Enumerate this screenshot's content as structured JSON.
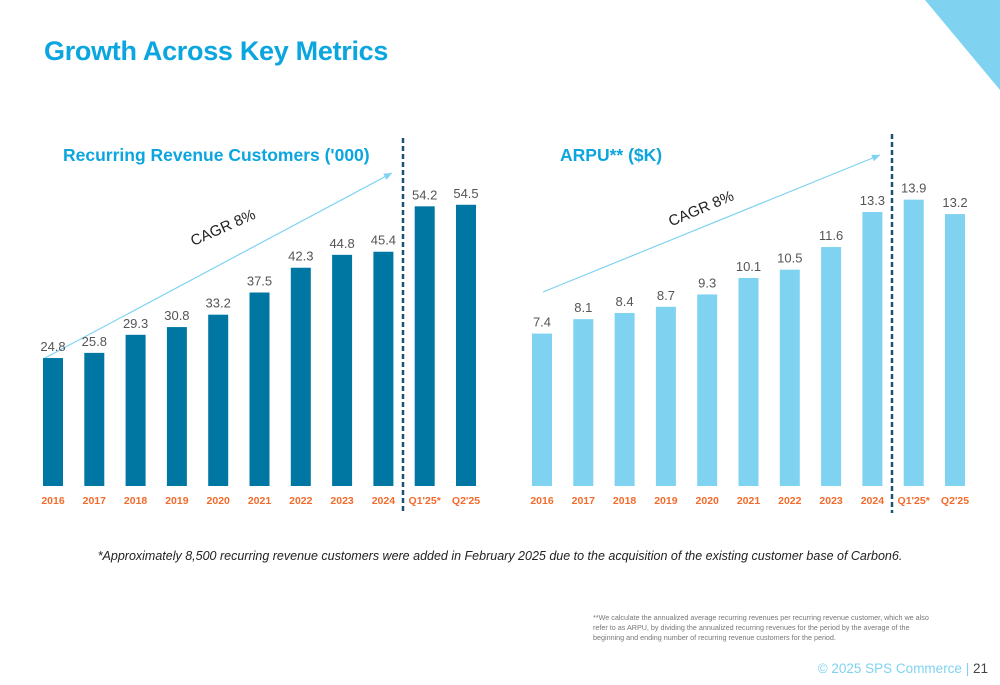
{
  "page": {
    "title": "Growth Across Key Metrics",
    "note": "*Approximately 8,500 recurring revenue customers were added in February 2025 due to the acquisition of the existing customer base of Carbon6.",
    "footnote": "**We calculate the annualized average recurring revenues per recurring revenue customer, which we also refer to as ARPU, by dividing the annualized recurring revenues for the period by the average of the beginning and ending number of recurring revenue customers for the period.",
    "footer_company": "© 2025 SPS Commerce |",
    "page_number": "21",
    "colors": {
      "accent": "#0ba5df",
      "corner": "#7fd3f1",
      "label": "#f26b2b",
      "divider": "#1a5276"
    }
  },
  "chart_data": [
    {
      "type": "bar",
      "title": "Recurring Revenue Customers ('000)",
      "categories": [
        "2016",
        "2017",
        "2018",
        "2019",
        "2020",
        "2021",
        "2022",
        "2023",
        "2024",
        "Q1'25*",
        "Q2'25"
      ],
      "values": [
        24.8,
        25.8,
        29.3,
        30.8,
        33.2,
        37.5,
        42.3,
        44.8,
        45.4,
        54.2,
        54.5
      ],
      "labels": [
        "24.8",
        "25.8",
        "29.3",
        "30.8",
        "33.2",
        "37.5",
        "42.3",
        "44.8",
        "45.4",
        "54.2",
        "54.5"
      ],
      "annotation": "CAGR 8%",
      "divider_after": "2024",
      "ylim": [
        0,
        55
      ],
      "grid": false,
      "bar_color": "#0077a3",
      "xlabel": "",
      "ylabel": ""
    },
    {
      "type": "bar",
      "title": "ARPU** ($K)",
      "categories": [
        "2016",
        "2017",
        "2018",
        "2019",
        "2020",
        "2021",
        "2022",
        "2023",
        "2024",
        "Q1'25*",
        "Q2'25"
      ],
      "values": [
        7.4,
        8.1,
        8.4,
        8.7,
        9.3,
        10.1,
        10.5,
        11.6,
        13.3,
        13.9,
        13.2
      ],
      "labels": [
        "7.4",
        "8.1",
        "8.4",
        "8.7",
        "9.3",
        "10.1",
        "10.5",
        "11.6",
        "13.3",
        "13.9",
        "13.2"
      ],
      "annotation": "CAGR 8%",
      "divider_after": "2024",
      "ylim": [
        0,
        14
      ],
      "grid": false,
      "bar_color": "#7fd3f1",
      "xlabel": "",
      "ylabel": ""
    }
  ]
}
